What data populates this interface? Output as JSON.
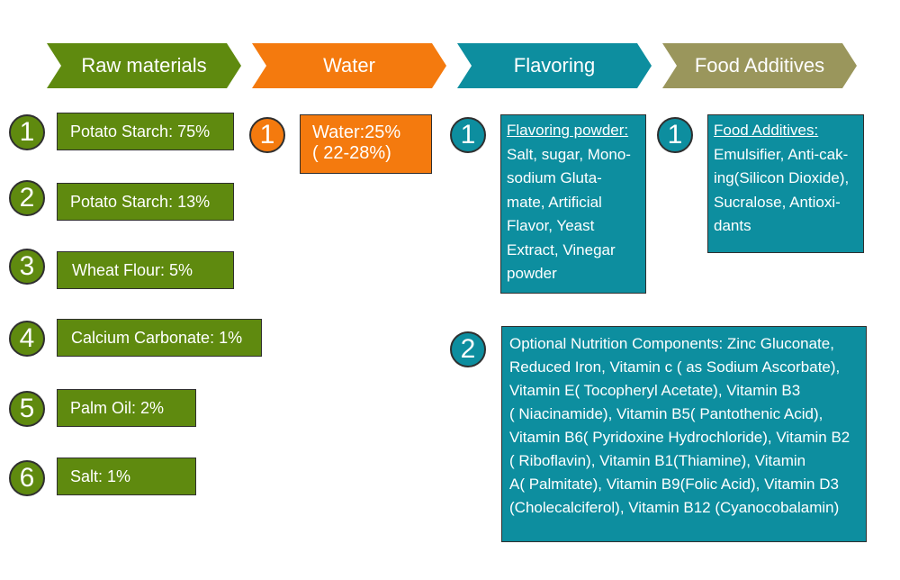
{
  "headers": {
    "raw": "Raw materials",
    "water": "Water",
    "flavoring": "Flavoring",
    "additives": "Food Additives"
  },
  "colors": {
    "green": "#5f8a0f",
    "orange": "#f47a0e",
    "teal": "#0d8e9f",
    "olive": "#9a965c"
  },
  "raw_materials": [
    {
      "num": "1",
      "label": "Potato Starch: 75%"
    },
    {
      "num": "2",
      "label": "Potato Starch: 13%"
    },
    {
      "num": "3",
      "label": "Wheat Flour: 5%"
    },
    {
      "num": "4",
      "label": "Calcium Carbonate: 1%"
    },
    {
      "num": "5",
      "label": "Palm Oil: 2%"
    },
    {
      "num": "6",
      "label": "Salt: 1%"
    }
  ],
  "water": {
    "num": "1",
    "line1": "Water:25%",
    "line2": "( 22-28%)"
  },
  "flavoring": {
    "num1": "1",
    "heading": "Flavoring powder:",
    "lines": [
      "Salt, sugar, Mono-",
      "sodium Gluta-",
      "mate, Artificial",
      "Flavor, Yeast",
      "Extract, Vinegar",
      "powder"
    ],
    "num2": "2",
    "nutrition_lines": [
      "Optional Nutrition Components: Zinc Gluconate,",
      "Reduced Iron, Vitamin c ( as Sodium Ascorbate),",
      "Vitamin E( Tocopheryl Acetate), Vitamin B3",
      "( Niacinamide), Vitamin B5( Pantothenic Acid),",
      "Vitamin B6( Pyridoxine Hydrochloride), Vitamin B2",
      "( Riboflavin), Vitamin B1(Thiamine), Vitamin",
      "A( Palmitate), Vitamin B9(Folic Acid), Vitamin D3",
      "(Cholecalciferol), Vitamin B12 (Cyanocobalamin)"
    ]
  },
  "additives": {
    "num": "1",
    "heading": "Food Additives:",
    "lines": [
      "Emulsifier, Anti-cak-",
      "ing(Silicon Dioxide),",
      "Sucralose, Antioxi-",
      "dants"
    ]
  }
}
